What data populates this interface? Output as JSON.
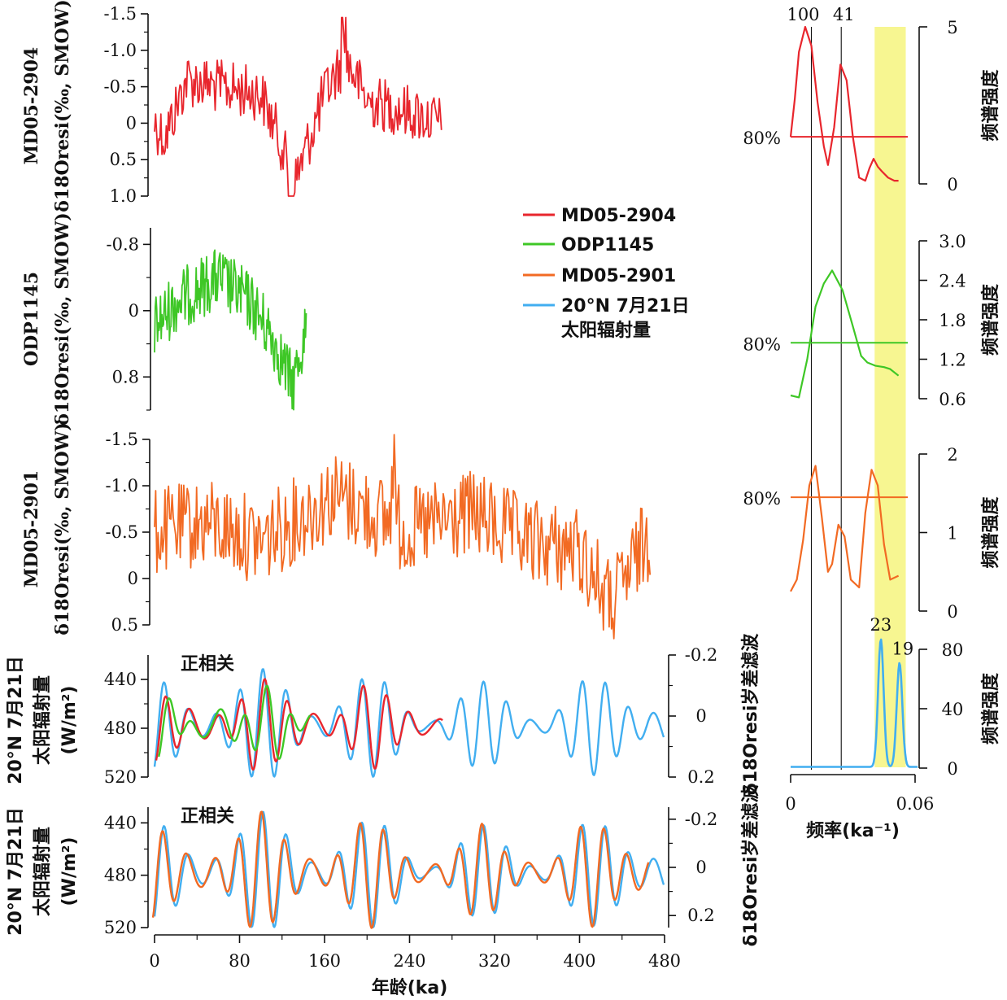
{
  "chart_data": [
    {
      "type": "line",
      "panel": "MD05-2904 δ18O_resi",
      "series_name": "MD05-2904",
      "color": "#e8262d",
      "x_range_ka": [
        0,
        270
      ],
      "ylim": [
        1.0,
        -1.5
      ],
      "yticks": [
        "-1.5",
        "-1.0",
        "-0.5",
        "0",
        "0.5",
        "1.0"
      ],
      "ylabel_line1": "MD05-2904",
      "ylabel_line2": "δ18Oresi(‰, SMOW)",
      "values_by_key_ages": {
        "x": [
          0,
          10,
          30,
          60,
          100,
          120,
          130,
          160,
          180,
          200,
          230,
          270
        ],
        "y": [
          0.0,
          0.2,
          -0.6,
          -0.5,
          -0.4,
          0.3,
          0.9,
          -0.4,
          -0.9,
          -0.3,
          -0.2,
          0.0
        ]
      }
    },
    {
      "type": "line",
      "panel": "ODP1145 δ18O_resi",
      "series_name": "ODP1145",
      "color": "#3ec726",
      "x_range_ka": [
        0,
        143
      ],
      "ylim": [
        1.2,
        -1.0
      ],
      "yticks": [
        "-0.8",
        "0",
        "0.8"
      ],
      "ylabel_line1": "ODP1145",
      "ylabel_line2": "δ18Oresi(‰, SMOW)",
      "values_by_key_ages": {
        "x": [
          0,
          20,
          60,
          90,
          110,
          130,
          143
        ],
        "y": [
          0.2,
          -0.1,
          -0.4,
          -0.1,
          0.3,
          0.9,
          0.2
        ]
      }
    },
    {
      "type": "line",
      "panel": "MD05-2901 δ18O_resi",
      "series_name": "MD05-2901",
      "color": "#f26a23",
      "x_range_ka": [
        0,
        467
      ],
      "ylim": [
        0.5,
        -1.5
      ],
      "yticks": [
        "-1.5",
        "-1.0",
        "-0.5",
        "0",
        "0.5"
      ],
      "ylabel_line1": "MD05-2901",
      "ylabel_line2": "δ18Oresi(‰, SMOW)",
      "values_by_key_ages": {
        "x": [
          0,
          50,
          100,
          170,
          240,
          300,
          350,
          400,
          430,
          467
        ],
        "y": [
          -0.5,
          -0.6,
          -0.4,
          -0.9,
          -0.5,
          -0.7,
          -0.4,
          -0.3,
          0.3,
          -0.5
        ]
      }
    },
    {
      "type": "line",
      "panel": "Insolation vs MD05-2904 / ODP1145 precession filter",
      "annotation": "正相关",
      "xlim": [
        0,
        480
      ],
      "ylim_left": [
        520,
        420
      ],
      "yticks_left": [
        "440",
        "480",
        "520"
      ],
      "ylim_right": [
        0.2,
        -0.2
      ],
      "yticks_right": [
        "-0.2",
        "0",
        "0.2"
      ],
      "ylabel_left": [
        "20°N 7月21日",
        "太阳辐射量",
        "(W/m²)"
      ],
      "ylabel_right": "δ18Oresi岁差滤波",
      "series": [
        {
          "name": "20°N 7月21日太阳辐射量",
          "color": "#41aef0",
          "x_range_ka": [
            0,
            480
          ]
        },
        {
          "name": "MD05-2904",
          "color": "#e8262d",
          "x_range_ka": [
            0,
            270
          ]
        },
        {
          "name": "ODP1145",
          "color": "#3ec726",
          "x_range_ka": [
            0,
            143
          ]
        }
      ]
    },
    {
      "type": "line",
      "panel": "Insolation vs MD05-2901 precession filter",
      "annotation": "正相关",
      "xlim": [
        0,
        480
      ],
      "xticks": [
        "0",
        "80",
        "160",
        "240",
        "320",
        "400",
        "480"
      ],
      "xlabel": "年龄(ka)",
      "ylim_left": [
        520,
        428
      ],
      "yticks_left": [
        "440",
        "480",
        "520"
      ],
      "ylim_right": [
        0.25,
        -0.25
      ],
      "yticks_right": [
        "-0.2",
        "0",
        "0.2"
      ],
      "ylabel_left": [
        "20°N 7月21日",
        "太阳辐射量",
        "(W/m²)"
      ],
      "ylabel_right": "δ18Oresi岁差滤波",
      "series": [
        {
          "name": "20°N 7月21日太阳辐射量",
          "color": "#41aef0",
          "x_range_ka": [
            0,
            480
          ]
        },
        {
          "name": "MD05-2901",
          "color": "#f26a23",
          "x_range_ka": [
            0,
            467
          ]
        }
      ]
    },
    {
      "type": "line",
      "panel": "Spectrum MD05-2904",
      "color": "#e8262d",
      "xlim": [
        0,
        0.06
      ],
      "ylim": [
        0,
        5
      ],
      "yticks": [
        "0",
        "5"
      ],
      "ylabel": "频谱强度",
      "confidence_label": "80%",
      "confidence_level": 1.5,
      "x": [
        0,
        0.002,
        0.004,
        0.007,
        0.01,
        0.013,
        0.016,
        0.018,
        0.021,
        0.024,
        0.027,
        0.03,
        0.033,
        0.036,
        0.038,
        0.04,
        0.042,
        0.044,
        0.047,
        0.05,
        0.052
      ],
      "y": [
        1.5,
        2.7,
        4.2,
        5.0,
        4.4,
        2.6,
        1.2,
        0.6,
        1.8,
        3.8,
        3.3,
        1.5,
        0.2,
        0.1,
        0.5,
        0.8,
        0.55,
        0.4,
        0.2,
        0.1,
        0.1
      ]
    },
    {
      "type": "line",
      "panel": "Spectrum ODP1145",
      "color": "#3ec726",
      "xlim": [
        0,
        0.06
      ],
      "ylim": [
        0.6,
        3.0
      ],
      "yticks": [
        "0.6",
        "1.2",
        "1.8",
        "2.4",
        "3.0"
      ],
      "ylabel": "频谱强度",
      "confidence_label": "80%",
      "confidence_level": 1.45,
      "x": [
        0,
        0.004,
        0.008,
        0.012,
        0.016,
        0.02,
        0.025,
        0.03,
        0.034,
        0.037,
        0.041,
        0.045,
        0.048,
        0.052
      ],
      "y": [
        0.65,
        0.62,
        1.2,
        2.0,
        2.35,
        2.55,
        2.25,
        1.7,
        1.25,
        1.15,
        1.1,
        1.08,
        1.05,
        0.95
      ]
    },
    {
      "type": "line",
      "panel": "Spectrum MD05-2901",
      "color": "#f26a23",
      "xlim": [
        0,
        0.06
      ],
      "ylim": [
        0,
        2
      ],
      "yticks": [
        "0",
        "1",
        "2"
      ],
      "ylabel": "频谱强度",
      "confidence_label": "80%",
      "confidence_level": 1.45,
      "x": [
        0,
        0.003,
        0.006,
        0.009,
        0.012,
        0.015,
        0.018,
        0.02,
        0.023,
        0.026,
        0.029,
        0.033,
        0.036,
        0.039,
        0.042,
        0.045,
        0.048,
        0.052
      ],
      "y": [
        0.25,
        0.4,
        0.9,
        1.6,
        1.85,
        1.2,
        0.5,
        0.6,
        1.1,
        0.95,
        0.4,
        0.3,
        1.25,
        1.8,
        1.6,
        0.85,
        0.4,
        0.45
      ]
    },
    {
      "type": "line",
      "panel": "Spectrum insolation",
      "color": "#41aef0",
      "xlim": [
        0,
        0.06
      ],
      "xticks": [
        "0",
        "0.06"
      ],
      "xlabel": "频率(ka⁻¹)",
      "ylim": [
        0,
        80
      ],
      "yticks": [
        "0",
        "40",
        "80"
      ],
      "ylabel": "频谱强度",
      "peaks": [
        {
          "label": "23",
          "freq": 0.0435,
          "power": 86
        },
        {
          "label": "19",
          "freq": 0.0525,
          "power": 70
        }
      ]
    }
  ],
  "legend": [
    {
      "label": "MD05-2904",
      "color": "#e8262d"
    },
    {
      "label": "ODP1145",
      "color": "#3ec726"
    },
    {
      "label": "MD05-2901",
      "color": "#f26a23"
    },
    {
      "label": "20°N 7月21日",
      "label2": "太阳辐射量",
      "color": "#41aef0"
    }
  ],
  "period_labels": [
    {
      "label": "100",
      "freq": 0.01
    },
    {
      "label": "41",
      "freq": 0.0244
    }
  ],
  "highlight_band": {
    "freq_min": 0.0405,
    "freq_max": 0.0555,
    "color": "#f7f691"
  }
}
